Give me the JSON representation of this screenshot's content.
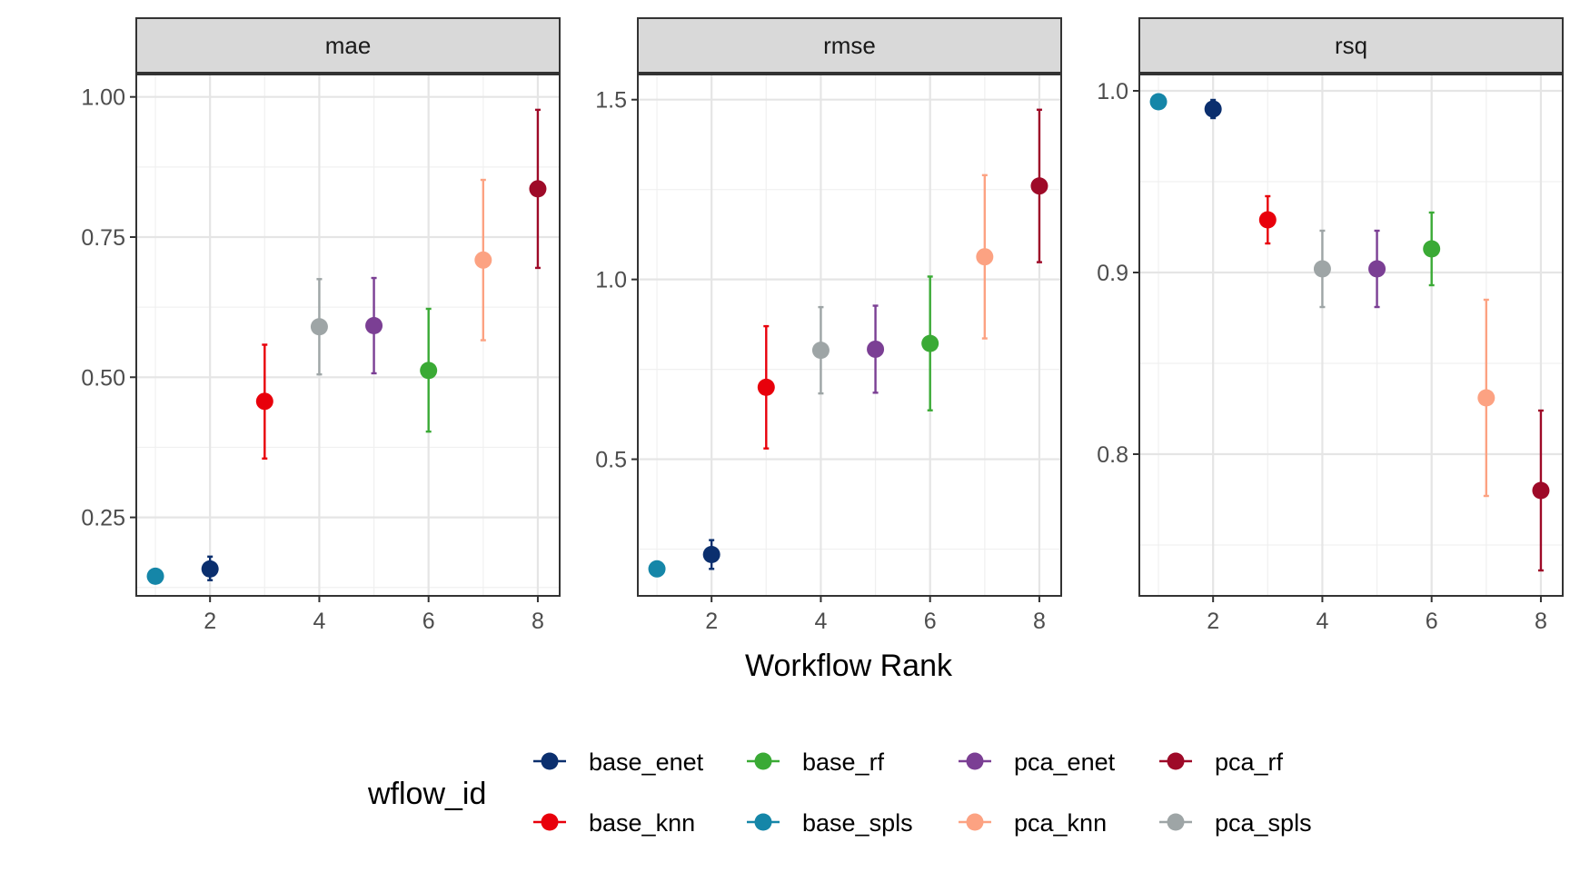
{
  "chart_data": {
    "type": "scatter",
    "xlabel": "Workflow Rank",
    "x_ticks": [
      2,
      4,
      6,
      8
    ],
    "legend": {
      "title": "wflow_id",
      "position": "bottom",
      "items": [
        {
          "name": "base_enet",
          "color": "#0B2F6E"
        },
        {
          "name": "base_rf",
          "color": "#3AAA35"
        },
        {
          "name": "pca_enet",
          "color": "#7B3F94"
        },
        {
          "name": "pca_rf",
          "color": "#9E0A28"
        },
        {
          "name": "base_knn",
          "color": "#E8000B"
        },
        {
          "name": "base_spls",
          "color": "#1586A8"
        },
        {
          "name": "pca_knn",
          "color": "#FCA282"
        },
        {
          "name": "pca_spls",
          "color": "#9EA5A6"
        }
      ]
    },
    "panels": [
      {
        "title": "mae",
        "xlim": [
          0.65,
          8.4
        ],
        "ylim": [
          0.11,
          1.04
        ],
        "y_ticks": [
          {
            "v": 0.25,
            "label": "0.25"
          },
          {
            "v": 0.5,
            "label": "0.50"
          },
          {
            "v": 0.75,
            "label": "0.75"
          },
          {
            "v": 1.0,
            "label": "1.00"
          }
        ],
        "points": [
          {
            "id": "base_spls",
            "rank": 1,
            "mean": 0.145,
            "lower": 0.145,
            "upper": 0.145
          },
          {
            "id": "base_enet",
            "rank": 2,
            "mean": 0.158,
            "lower": 0.138,
            "upper": 0.18
          },
          {
            "id": "base_knn",
            "rank": 3,
            "mean": 0.457,
            "lower": 0.355,
            "upper": 0.558
          },
          {
            "id": "pca_spls",
            "rank": 4,
            "mean": 0.59,
            "lower": 0.505,
            "upper": 0.675
          },
          {
            "id": "pca_enet",
            "rank": 5,
            "mean": 0.592,
            "lower": 0.507,
            "upper": 0.677
          },
          {
            "id": "base_rf",
            "rank": 6,
            "mean": 0.512,
            "lower": 0.403,
            "upper": 0.622
          },
          {
            "id": "pca_knn",
            "rank": 7,
            "mean": 0.709,
            "lower": 0.566,
            "upper": 0.852
          },
          {
            "id": "pca_rf",
            "rank": 8,
            "mean": 0.836,
            "lower": 0.695,
            "upper": 0.977
          }
        ]
      },
      {
        "title": "rmse",
        "xlim": [
          0.65,
          8.4
        ],
        "ylim": [
          0.12,
          1.57
        ],
        "y_ticks": [
          {
            "v": 0.5,
            "label": "0.5"
          },
          {
            "v": 1.0,
            "label": "1.0"
          },
          {
            "v": 1.5,
            "label": "1.5"
          }
        ],
        "points": [
          {
            "id": "base_spls",
            "rank": 1,
            "mean": 0.195,
            "lower": 0.195,
            "upper": 0.195
          },
          {
            "id": "base_enet",
            "rank": 2,
            "mean": 0.235,
            "lower": 0.195,
            "upper": 0.275
          },
          {
            "id": "base_knn",
            "rank": 3,
            "mean": 0.7,
            "lower": 0.53,
            "upper": 0.87
          },
          {
            "id": "pca_spls",
            "rank": 4,
            "mean": 0.803,
            "lower": 0.683,
            "upper": 0.923
          },
          {
            "id": "pca_enet",
            "rank": 5,
            "mean": 0.806,
            "lower": 0.685,
            "upper": 0.927
          },
          {
            "id": "base_rf",
            "rank": 6,
            "mean": 0.822,
            "lower": 0.636,
            "upper": 1.008
          },
          {
            "id": "pca_knn",
            "rank": 7,
            "mean": 1.063,
            "lower": 0.836,
            "upper": 1.29
          },
          {
            "id": "pca_rf",
            "rank": 8,
            "mean": 1.26,
            "lower": 1.048,
            "upper": 1.472
          }
        ]
      },
      {
        "title": "rsq",
        "xlim": [
          0.65,
          8.4
        ],
        "ylim": [
          0.722,
          1.009
        ],
        "y_ticks": [
          {
            "v": 0.8,
            "label": "0.8"
          },
          {
            "v": 0.9,
            "label": "0.9"
          },
          {
            "v": 1.0,
            "label": "1.0"
          }
        ],
        "points": [
          {
            "id": "base_spls",
            "rank": 1,
            "mean": 0.994,
            "lower": 0.994,
            "upper": 0.994
          },
          {
            "id": "base_enet",
            "rank": 2,
            "mean": 0.99,
            "lower": 0.985,
            "upper": 0.995
          },
          {
            "id": "base_knn",
            "rank": 3,
            "mean": 0.929,
            "lower": 0.916,
            "upper": 0.942
          },
          {
            "id": "pca_spls",
            "rank": 4,
            "mean": 0.902,
            "lower": 0.881,
            "upper": 0.923
          },
          {
            "id": "pca_enet",
            "rank": 5,
            "mean": 0.902,
            "lower": 0.881,
            "upper": 0.923
          },
          {
            "id": "base_rf",
            "rank": 6,
            "mean": 0.913,
            "lower": 0.893,
            "upper": 0.933
          },
          {
            "id": "pca_knn",
            "rank": 7,
            "mean": 0.831,
            "lower": 0.777,
            "upper": 0.885
          },
          {
            "id": "pca_rf",
            "rank": 8,
            "mean": 0.78,
            "lower": 0.736,
            "upper": 0.824
          }
        ]
      }
    ]
  }
}
